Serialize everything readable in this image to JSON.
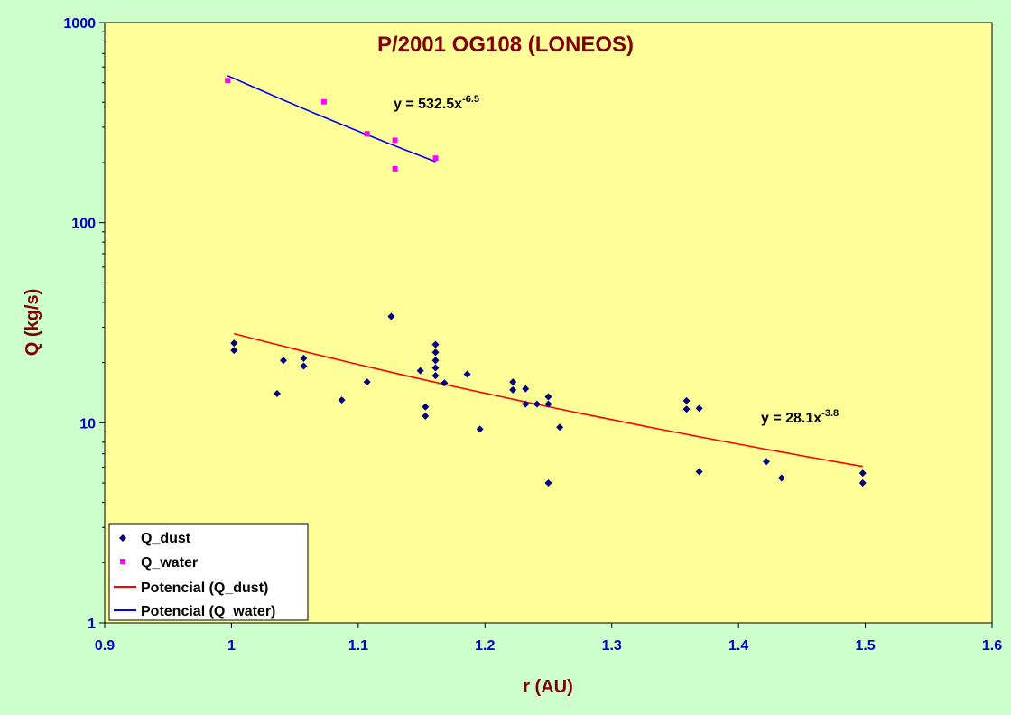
{
  "chart_data": {
    "type": "scatter",
    "title": "P/2001 OG108 (LONEOS)",
    "xlabel": "r (AU)",
    "ylabel": "Q (kg/s)",
    "xlim": [
      0.9,
      1.6
    ],
    "ylim": [
      1,
      1000
    ],
    "yscale": "log",
    "xticks": [
      "0.9",
      "1",
      "1.1",
      "1.2",
      "1.3",
      "1.4",
      "1.5",
      "1.6"
    ],
    "yticks": [
      "1",
      "10",
      "100",
      "1000"
    ],
    "grid": false,
    "legend_position": "bottom-left",
    "colors": {
      "plot_bg": "#ffff99",
      "page_bg": "#ccffcc",
      "dust": "#000080",
      "water": "#ff00ff",
      "fit_dust": "#ff0000",
      "fit_water": "#0000ff"
    },
    "series": [
      {
        "name": "Q_dust",
        "marker": "diamond",
        "points": [
          [
            1.002,
            25
          ],
          [
            1.002,
            23
          ],
          [
            1.036,
            14
          ],
          [
            1.041,
            20.5
          ],
          [
            1.057,
            21
          ],
          [
            1.057,
            19.2
          ],
          [
            1.087,
            13
          ],
          [
            1.107,
            16
          ],
          [
            1.126,
            34
          ],
          [
            1.149,
            18.2
          ],
          [
            1.153,
            12
          ],
          [
            1.153,
            10.8
          ],
          [
            1.161,
            24.6
          ],
          [
            1.161,
            22.5
          ],
          [
            1.161,
            20.5
          ],
          [
            1.161,
            18.8
          ],
          [
            1.161,
            17.2
          ],
          [
            1.168,
            15.8
          ],
          [
            1.186,
            17.5
          ],
          [
            1.196,
            9.3
          ],
          [
            1.222,
            16
          ],
          [
            1.222,
            14.6
          ],
          [
            1.232,
            14.8
          ],
          [
            1.232,
            12.4
          ],
          [
            1.241,
            12.4
          ],
          [
            1.25,
            13.5
          ],
          [
            1.25,
            12.4
          ],
          [
            1.25,
            5
          ],
          [
            1.259,
            9.5
          ],
          [
            1.359,
            12.9
          ],
          [
            1.359,
            11.7
          ],
          [
            1.369,
            11.8
          ],
          [
            1.369,
            5.7
          ],
          [
            1.422,
            6.4
          ],
          [
            1.434,
            5.3
          ],
          [
            1.498,
            5.6
          ],
          [
            1.498,
            5
          ]
        ]
      },
      {
        "name": "Q_water",
        "marker": "square",
        "points": [
          [
            0.997,
            513
          ],
          [
            1.073,
            402
          ],
          [
            1.107,
            278
          ],
          [
            1.129,
            258
          ],
          [
            1.129,
            186
          ],
          [
            1.161,
            210
          ]
        ]
      },
      {
        "name": "Potencial (Q_dust)",
        "type": "line",
        "fit": {
          "a": 28.1,
          "b": -3.8,
          "x_range": [
            1.002,
            1.498
          ]
        },
        "equation": "y = 28.1x",
        "exponent": "-3.8"
      },
      {
        "name": "Potencial (Q_water)",
        "type": "line",
        "fit": {
          "a": 532.5,
          "b": -6.5,
          "x_range": [
            0.997,
            1.161
          ]
        },
        "equation": "y = 532.5x",
        "exponent": "-6.5"
      }
    ]
  }
}
